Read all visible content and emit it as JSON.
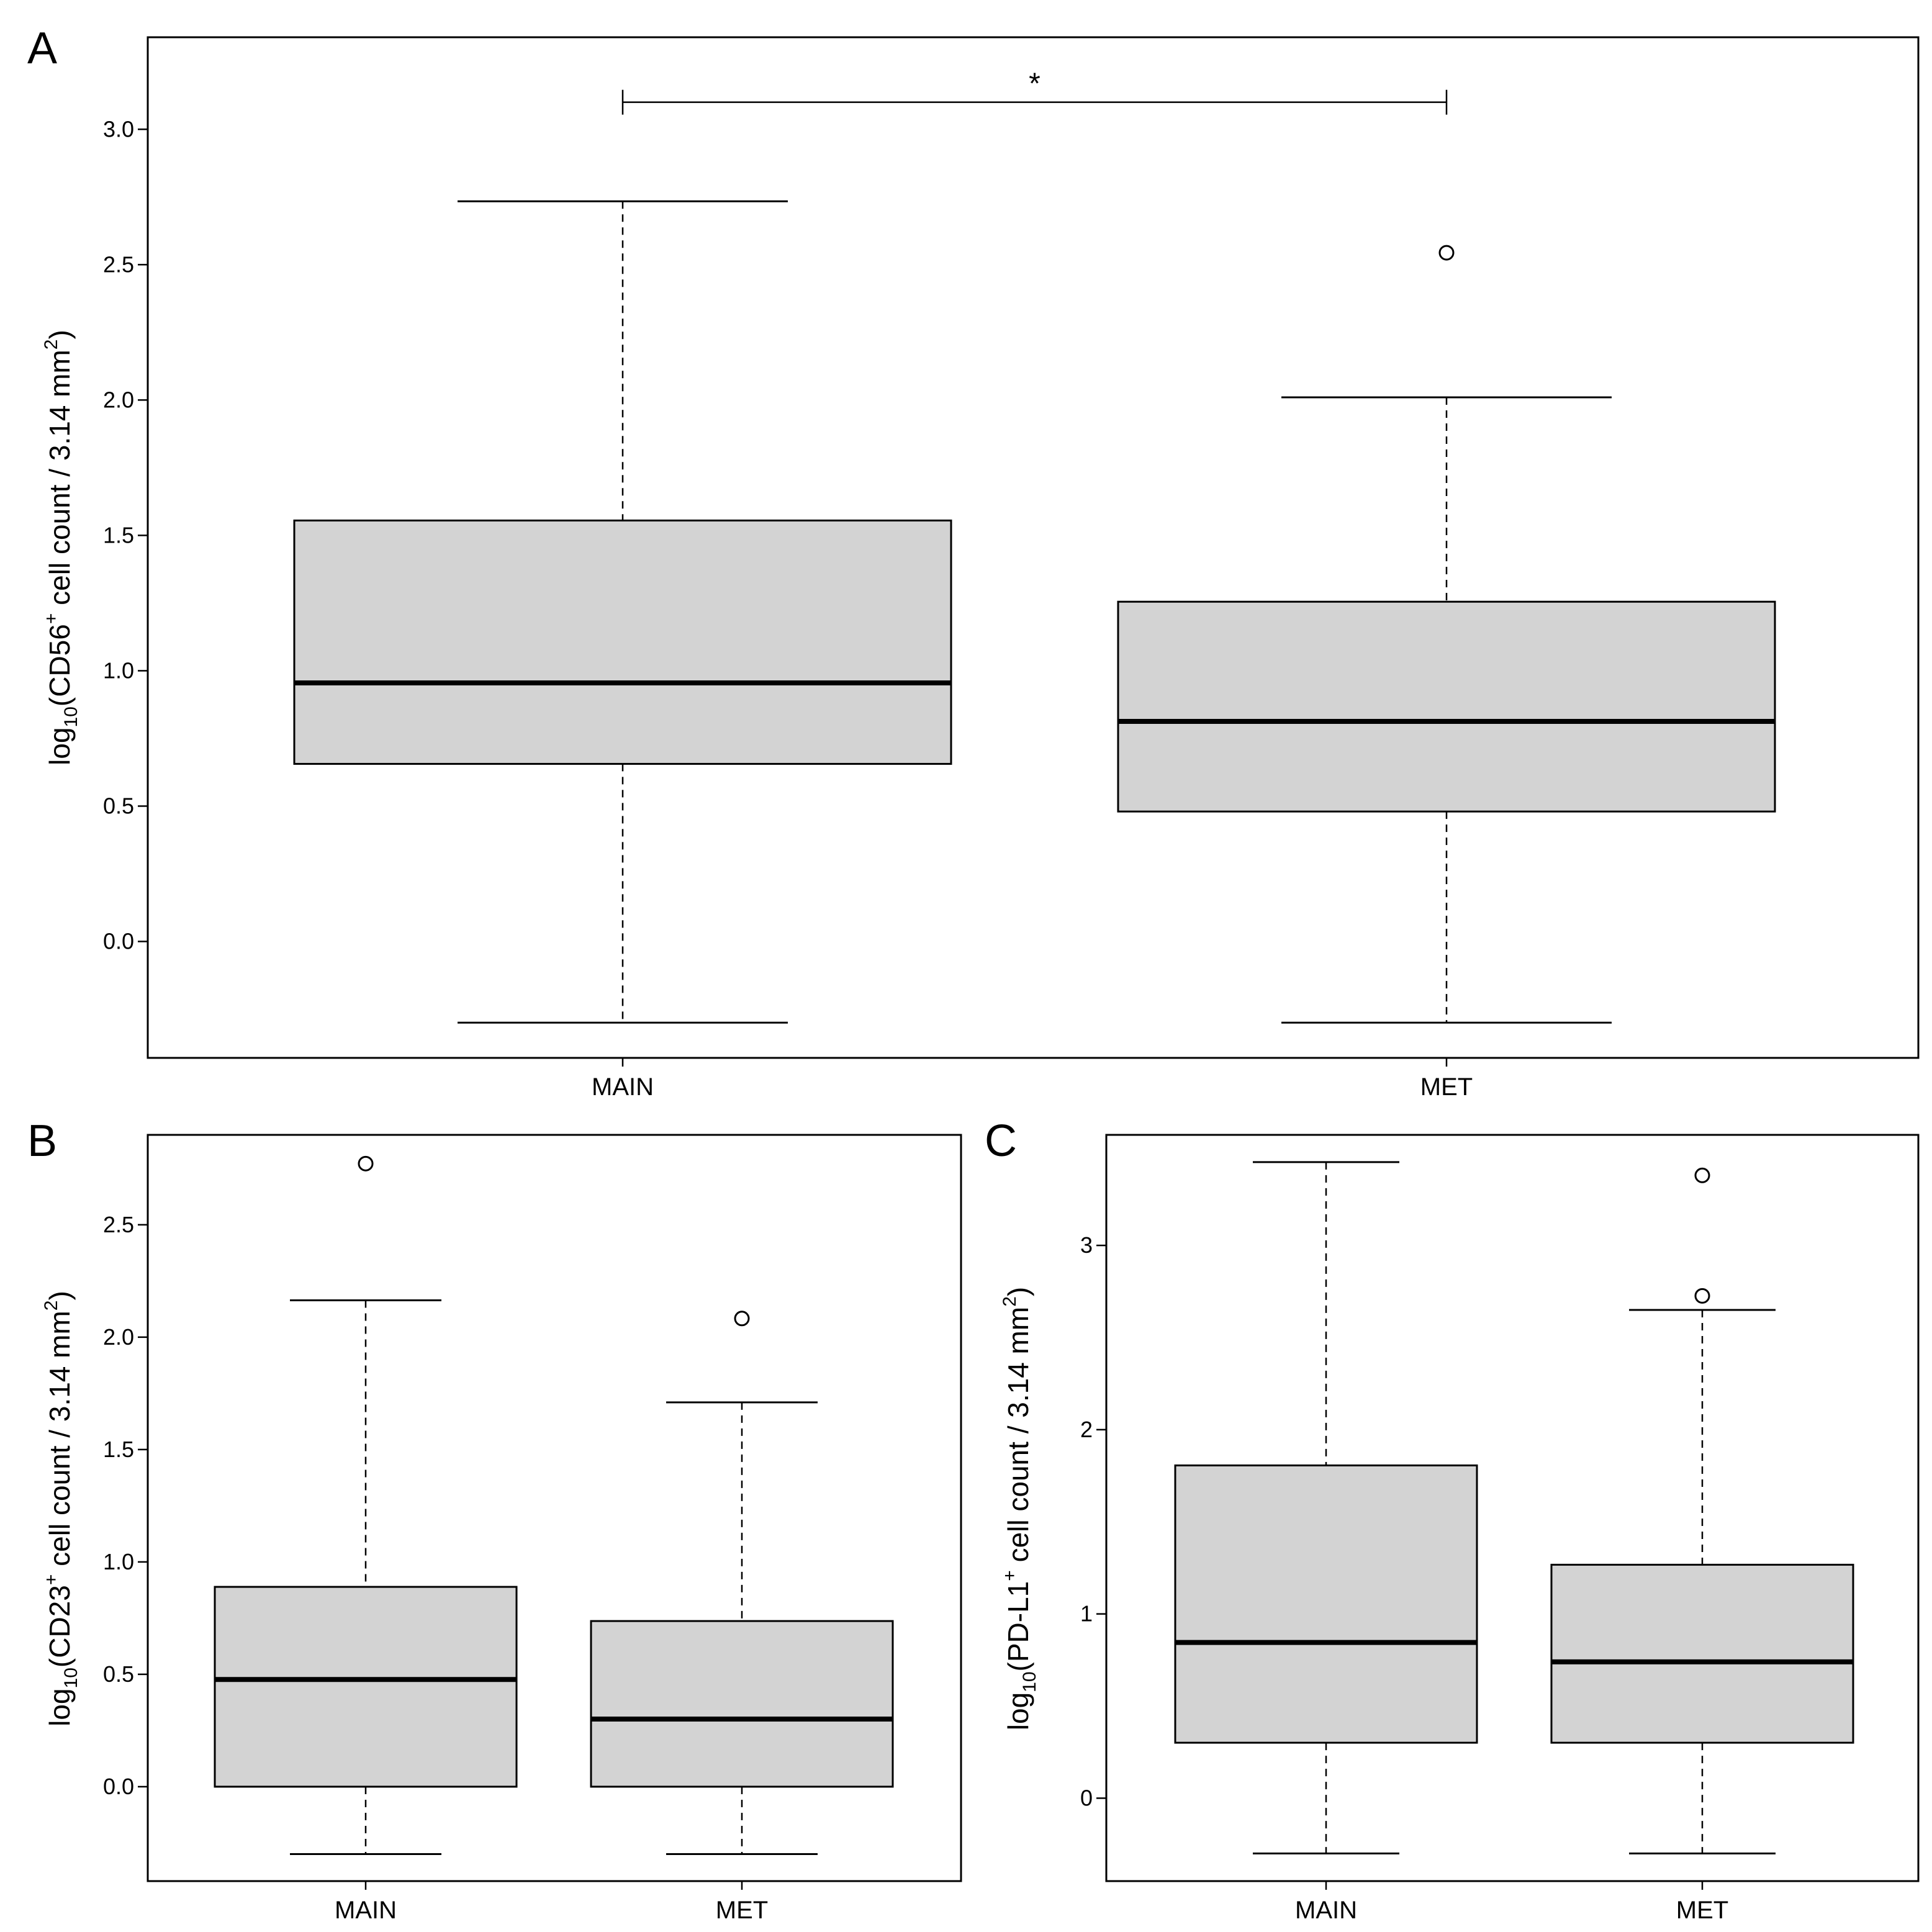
{
  "chart_data": [
    {
      "type": "box",
      "panel": "A",
      "ylabel": {
        "pre": "log",
        "sub": "10",
        "marker": "(CD56",
        "sup": "+",
        "mid": " cell count / 3.14 mm",
        "sup2": "2",
        "post": ")"
      },
      "ylim": [
        -0.43,
        3.34
      ],
      "yticks": [
        0.0,
        0.5,
        1.0,
        1.5,
        2.0,
        2.5,
        3.0
      ],
      "ytick_labels": [
        "0.0",
        "0.5",
        "1.0",
        "1.5",
        "2.0",
        "2.5",
        "3.0"
      ],
      "categories": [
        "MAIN",
        "MET"
      ],
      "boxes": [
        {
          "name": "MAIN",
          "whisker_low": -0.3,
          "q1": 0.656,
          "median": 0.955,
          "q3": 1.555,
          "whisker_high": 2.734,
          "outliers": []
        },
        {
          "name": "MET",
          "whisker_low": -0.3,
          "q1": 0.48,
          "median": 0.813,
          "q3": 1.255,
          "whisker_high": 2.01,
          "outliers": [
            2.544
          ]
        }
      ],
      "significance": {
        "from": "MAIN",
        "to": "MET",
        "y": 3.1,
        "label": "*"
      }
    },
    {
      "type": "box",
      "panel": "B",
      "ylabel": {
        "pre": "log",
        "sub": "10",
        "marker": "(CD23",
        "sup": "+",
        "mid": " cell count / 3.14 mm",
        "sup2": "2",
        "post": ")"
      },
      "ylim": [
        -0.42,
        2.9
      ],
      "yticks": [
        0.0,
        0.5,
        1.0,
        1.5,
        2.0,
        2.5
      ],
      "ytick_labels": [
        "0.0",
        "0.5",
        "1.0",
        "1.5",
        "2.0",
        "2.5"
      ],
      "categories": [
        "MAIN",
        "MET"
      ],
      "boxes": [
        {
          "name": "MAIN",
          "whisker_low": -0.3,
          "q1": 0.0,
          "median": 0.477,
          "q3": 0.889,
          "whisker_high": 2.164,
          "outliers": [
            2.772
          ]
        },
        {
          "name": "MET",
          "whisker_low": -0.3,
          "q1": 0.0,
          "median": 0.301,
          "q3": 0.737,
          "whisker_high": 1.71,
          "outliers": [
            2.083
          ]
        }
      ]
    },
    {
      "type": "box",
      "panel": "C",
      "ylabel": {
        "pre": "log",
        "sub": "10",
        "marker": "(PD-L1",
        "sup": "+",
        "mid": " cell count / 3.14 mm",
        "sup2": "2",
        "post": ")"
      },
      "ylim": [
        -0.45,
        3.6
      ],
      "yticks": [
        0,
        1,
        2,
        3
      ],
      "ytick_labels": [
        "0",
        "1",
        "2",
        "3"
      ],
      "categories": [
        "MAIN",
        "MET"
      ],
      "boxes": [
        {
          "name": "MAIN",
          "whisker_low": -0.3,
          "q1": 0.301,
          "median": 0.845,
          "q3": 1.806,
          "whisker_high": 3.452,
          "outliers": []
        },
        {
          "name": "MET",
          "whisker_low": -0.3,
          "q1": 0.301,
          "median": 0.74,
          "q3": 1.267,
          "whisker_high": 2.65,
          "outliers": [
            3.38,
            2.726
          ]
        }
      ]
    }
  ]
}
